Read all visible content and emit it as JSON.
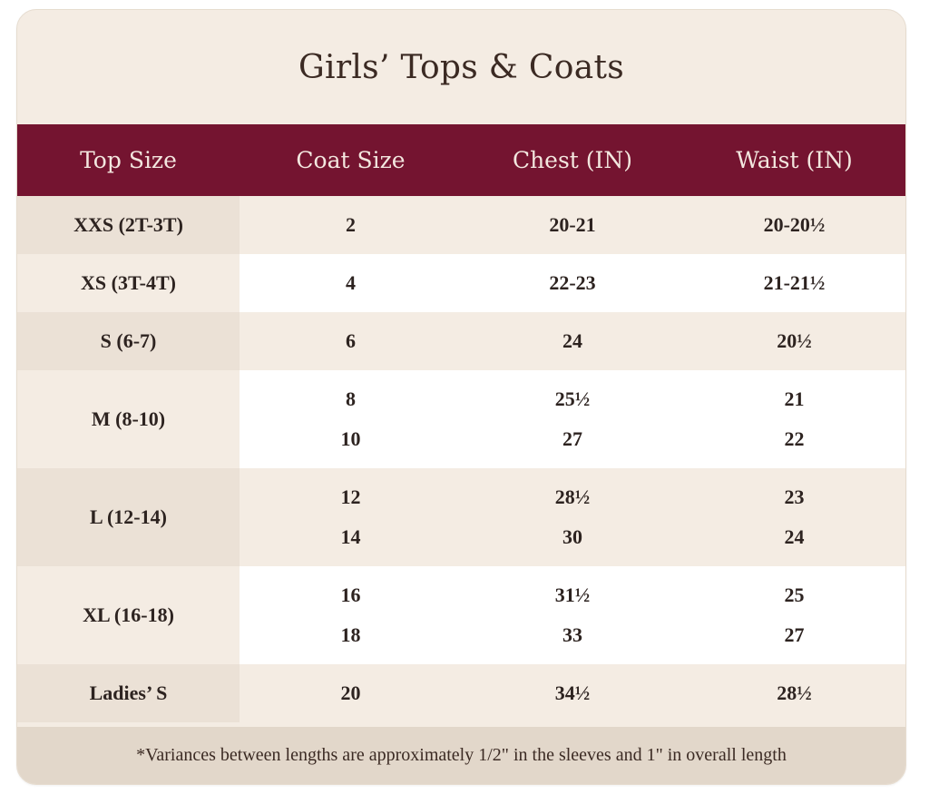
{
  "title": "Girls’ Tops & Coats",
  "headers": [
    "Top Size",
    "Coat Size",
    "Chest (IN)",
    "Waist (IN)"
  ],
  "rows": [
    {
      "top": "XXS (2T-3T)",
      "coat": [
        "2"
      ],
      "chest": [
        "20-21"
      ],
      "waist": [
        "20-20½"
      ]
    },
    {
      "top": "XS (3T-4T)",
      "coat": [
        "4"
      ],
      "chest": [
        "22-23"
      ],
      "waist": [
        "21-21½"
      ]
    },
    {
      "top": "S (6-7)",
      "coat": [
        "6"
      ],
      "chest": [
        "24"
      ],
      "waist": [
        "20½"
      ]
    },
    {
      "top": "M (8-10)",
      "coat": [
        "8",
        "10"
      ],
      "chest": [
        "25½",
        "27"
      ],
      "waist": [
        "21",
        "22"
      ]
    },
    {
      "top": "L (12-14)",
      "coat": [
        "12",
        "14"
      ],
      "chest": [
        "28½",
        "30"
      ],
      "waist": [
        "23",
        "24"
      ]
    },
    {
      "top": "XL (16-18)",
      "coat": [
        "16",
        "18"
      ],
      "chest": [
        "31½",
        "33"
      ],
      "waist": [
        "25",
        "27"
      ]
    },
    {
      "top": "Ladies’ S",
      "coat": [
        "20"
      ],
      "chest": [
        "34½"
      ],
      "waist": [
        "28½"
      ]
    }
  ],
  "footnote": "*Variances between lengths are approximately 1/2\" in the sleeves and 1\" in overall length",
  "colors": {
    "header_bg": "#741430",
    "card_bg": "#f4ece3",
    "first_col_bg": "#ebe1d6",
    "footer_bg": "#e2d7ca",
    "text": "#2d2320"
  }
}
